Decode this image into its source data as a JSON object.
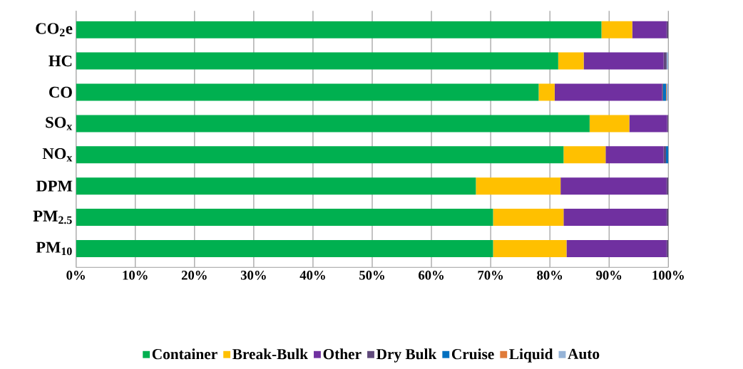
{
  "chart_data": {
    "type": "bar",
    "orientation": "horizontal",
    "stacked": true,
    "categories": [
      "CO$_{2}$e",
      "HC",
      "CO",
      "SO$_{x}$",
      "NO$_{x}$",
      "DPM",
      "PM$_{2.5}$",
      "PM$_{10}$"
    ],
    "series": [
      {
        "name": "Container",
        "color": "#00b050",
        "values": [
          88.7,
          81.4,
          78.1,
          86.7,
          82.3,
          67.5,
          70.4,
          70.4
        ]
      },
      {
        "name": "Break-Bulk",
        "color": "#ffc000",
        "values": [
          5.2,
          4.3,
          2.7,
          6.7,
          7.1,
          14.3,
          11.9,
          12.4
        ]
      },
      {
        "name": "Other",
        "color": "#7030a0",
        "values": [
          5.8,
          13.5,
          18.1,
          6.4,
          9.8,
          17.9,
          17.4,
          16.9
        ]
      },
      {
        "name": "Dry Bulk",
        "color": "#604a7b",
        "values": [
          0.3,
          0.5,
          0.2,
          0.2,
          0.4,
          0.3,
          0.3,
          0.3
        ]
      },
      {
        "name": "Cruise",
        "color": "#0070c0",
        "values": [
          0,
          0,
          0.5,
          0,
          0.4,
          0,
          0,
          0
        ]
      },
      {
        "name": "Liquid",
        "color": "#e07b39",
        "values": [
          0,
          0,
          0.1,
          0,
          0,
          0,
          0,
          0
        ]
      },
      {
        "name": "Auto",
        "color": "#95b3d7",
        "values": [
          0,
          0.3,
          0.3,
          0,
          0,
          0,
          0,
          0
        ]
      }
    ],
    "xlim": [
      0,
      100
    ],
    "xticks": [
      {
        "value": 0,
        "label": "0%"
      },
      {
        "value": 10,
        "label": "10%"
      },
      {
        "value": 20,
        "label": "20%"
      },
      {
        "value": 30,
        "label": "30%"
      },
      {
        "value": 40,
        "label": "40%"
      },
      {
        "value": 50,
        "label": "50%"
      },
      {
        "value": 60,
        "label": "60%"
      },
      {
        "value": 70,
        "label": "70%"
      },
      {
        "value": 80,
        "label": "80%"
      },
      {
        "value": 90,
        "label": "90%"
      },
      {
        "value": 100,
        "label": "100%"
      }
    ],
    "grid": "x",
    "legend": "bottom"
  }
}
